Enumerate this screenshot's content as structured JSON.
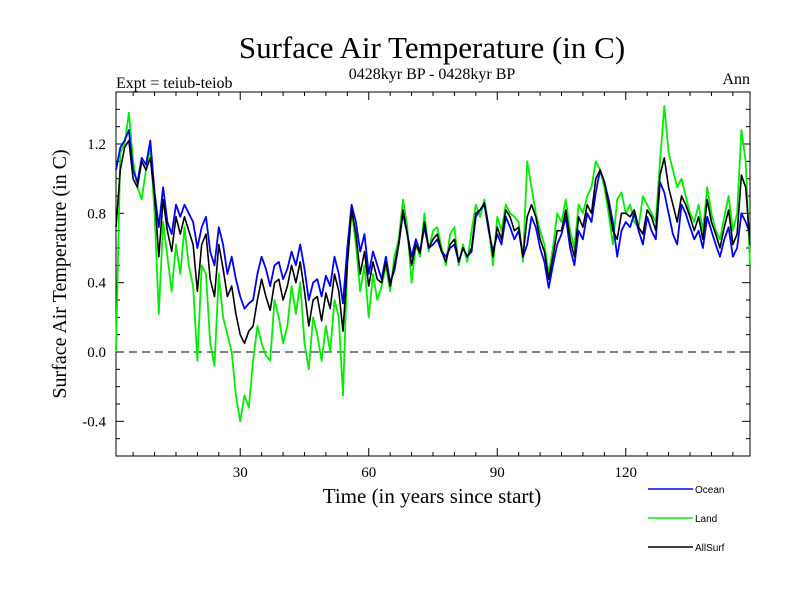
{
  "chart_data": {
    "type": "line",
    "title": "Surface Air Temperature (in C)",
    "subtitle": "0428kyr BP - 0428kyr BP",
    "left_label": "Expt = teiub-teiob",
    "right_label": "Ann",
    "xlabel": "Time (in years since start)",
    "ylabel": "Surface Air Temperature (in C)",
    "xlim": [
      1,
      149
    ],
    "ylim": [
      -0.6,
      1.5
    ],
    "xticks": [
      30,
      60,
      90,
      120
    ],
    "yticks": [
      -0.4,
      0.0,
      0.4,
      0.8,
      1.2
    ],
    "ytick_labels": [
      "-0.4",
      "0.0",
      "0.4",
      "0.8",
      "1.2"
    ],
    "zero_line": 0.0,
    "legend": [
      "Ocean",
      "Land",
      "AllSurf"
    ],
    "series": [
      {
        "name": "Ocean",
        "color": "#0000ff",
        "values": [
          1.05,
          1.18,
          1.22,
          1.28,
          1.05,
          0.98,
          1.12,
          1.08,
          1.22,
          0.92,
          0.72,
          0.95,
          0.75,
          0.68,
          0.85,
          0.78,
          0.85,
          0.8,
          0.75,
          0.6,
          0.72,
          0.78,
          0.58,
          0.5,
          0.72,
          0.62,
          0.45,
          0.55,
          0.42,
          0.32,
          0.25,
          0.28,
          0.3,
          0.45,
          0.55,
          0.48,
          0.38,
          0.5,
          0.52,
          0.42,
          0.48,
          0.58,
          0.5,
          0.62,
          0.48,
          0.3,
          0.4,
          0.42,
          0.32,
          0.44,
          0.38,
          0.55,
          0.45,
          0.28,
          0.6,
          0.85,
          0.75,
          0.58,
          0.68,
          0.45,
          0.58,
          0.5,
          0.42,
          0.55,
          0.4,
          0.47,
          0.62,
          0.8,
          0.68,
          0.55,
          0.65,
          0.58,
          0.72,
          0.6,
          0.62,
          0.65,
          0.58,
          0.55,
          0.6,
          0.62,
          0.52,
          0.6,
          0.55,
          0.58,
          0.78,
          0.82,
          0.85,
          0.7,
          0.58,
          0.68,
          0.62,
          0.78,
          0.72,
          0.65,
          0.7,
          0.55,
          0.62,
          0.78,
          0.72,
          0.6,
          0.52,
          0.37,
          0.5,
          0.62,
          0.68,
          0.78,
          0.6,
          0.5,
          0.7,
          0.65,
          0.8,
          0.75,
          0.92,
          1.05,
          0.98,
          0.88,
          0.75,
          0.55,
          0.7,
          0.75,
          0.72,
          0.8,
          0.7,
          0.62,
          0.78,
          0.7,
          0.65,
          0.98,
          0.92,
          0.8,
          0.68,
          0.62,
          0.85,
          0.8,
          0.72,
          0.65,
          0.7,
          0.6,
          0.78,
          0.7,
          0.62,
          0.55,
          0.65,
          0.72,
          0.55,
          0.6,
          0.8,
          0.75,
          0.68
        ]
      },
      {
        "name": "Land",
        "color": "#00ee00",
        "values": [
          0.0,
          1.15,
          1.2,
          1.38,
          1.1,
          0.95,
          0.88,
          1.05,
          1.18,
          0.8,
          0.22,
          0.75,
          0.55,
          0.35,
          0.62,
          0.45,
          0.72,
          0.5,
          0.38,
          -0.05,
          0.5,
          0.45,
          0.05,
          -0.08,
          0.45,
          0.2,
          0.1,
          0.0,
          -0.25,
          -0.4,
          -0.25,
          -0.32,
          -0.05,
          0.15,
          0.05,
          -0.02,
          -0.05,
          0.3,
          0.2,
          0.05,
          0.15,
          0.38,
          0.22,
          0.4,
          0.05,
          -0.1,
          0.2,
          0.1,
          -0.05,
          0.15,
          0.0,
          0.3,
          0.2,
          -0.25,
          0.5,
          0.82,
          0.62,
          0.35,
          0.5,
          0.2,
          0.45,
          0.3,
          0.38,
          0.5,
          0.35,
          0.55,
          0.65,
          0.88,
          0.72,
          0.4,
          0.62,
          0.55,
          0.8,
          0.58,
          0.7,
          0.72,
          0.6,
          0.5,
          0.68,
          0.72,
          0.5,
          0.62,
          0.52,
          0.7,
          0.85,
          0.78,
          0.88,
          0.72,
          0.5,
          0.78,
          0.7,
          0.85,
          0.8,
          0.78,
          0.75,
          0.52,
          1.1,
          0.95,
          0.8,
          0.7,
          0.62,
          0.45,
          0.6,
          0.8,
          0.75,
          0.88,
          0.7,
          0.6,
          0.85,
          0.8,
          0.9,
          0.95,
          1.1,
          1.05,
          0.95,
          0.8,
          0.62,
          0.88,
          0.92,
          0.8,
          0.85,
          0.75,
          0.72,
          0.9,
          0.85,
          0.8,
          0.75,
          1.1,
          1.42,
          1.15,
          1.05,
          0.95,
          1.0,
          0.9,
          0.8,
          0.75,
          0.85,
          0.7,
          0.95,
          0.8,
          0.7,
          0.65,
          0.78,
          0.9,
          0.7,
          0.8,
          1.28,
          1.1,
          0.5
        ]
      },
      {
        "name": "AllSurf",
        "color": "#000000",
        "values": [
          0.72,
          1.05,
          1.18,
          1.22,
          1.0,
          0.95,
          1.1,
          1.05,
          1.12,
          0.9,
          0.55,
          0.88,
          0.7,
          0.58,
          0.78,
          0.68,
          0.78,
          0.7,
          0.62,
          0.35,
          0.62,
          0.68,
          0.42,
          0.32,
          0.62,
          0.48,
          0.32,
          0.38,
          0.22,
          0.1,
          0.05,
          0.12,
          0.15,
          0.3,
          0.42,
          0.32,
          0.24,
          0.4,
          0.42,
          0.3,
          0.38,
          0.5,
          0.4,
          0.52,
          0.35,
          0.15,
          0.3,
          0.32,
          0.18,
          0.34,
          0.25,
          0.45,
          0.35,
          0.12,
          0.5,
          0.82,
          0.68,
          0.45,
          0.58,
          0.38,
          0.52,
          0.42,
          0.4,
          0.52,
          0.38,
          0.5,
          0.62,
          0.82,
          0.68,
          0.5,
          0.62,
          0.57,
          0.75,
          0.6,
          0.65,
          0.68,
          0.58,
          0.52,
          0.62,
          0.65,
          0.52,
          0.6,
          0.55,
          0.6,
          0.8,
          0.82,
          0.86,
          0.72,
          0.55,
          0.72,
          0.65,
          0.82,
          0.78,
          0.7,
          0.72,
          0.55,
          0.78,
          0.85,
          0.78,
          0.65,
          0.58,
          0.42,
          0.55,
          0.7,
          0.7,
          0.82,
          0.65,
          0.55,
          0.78,
          0.72,
          0.85,
          0.8,
          1.0,
          1.05,
          0.98,
          0.85,
          0.7,
          0.65,
          0.8,
          0.8,
          0.78,
          0.82,
          0.72,
          0.68,
          0.82,
          0.78,
          0.7,
          1.02,
          1.12,
          0.95,
          0.85,
          0.75,
          0.9,
          0.85,
          0.78,
          0.7,
          0.78,
          0.65,
          0.88,
          0.75,
          0.68,
          0.6,
          0.72,
          0.82,
          0.62,
          0.68,
          1.02,
          0.95,
          0.62
        ]
      }
    ]
  }
}
